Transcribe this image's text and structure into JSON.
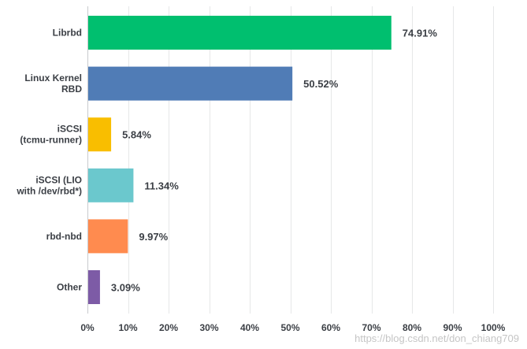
{
  "chart_data": {
    "type": "bar",
    "orientation": "horizontal",
    "categories": [
      [
        "Librbd"
      ],
      [
        "Linux Kernel",
        "RBD"
      ],
      [
        "iSCSI",
        "(tcmu-runner)"
      ],
      [
        "iSCSI (LIO",
        "with /dev/rbd*)"
      ],
      [
        "rbd-nbd"
      ],
      [
        "Other"
      ]
    ],
    "values": [
      74.91,
      50.52,
      5.84,
      11.34,
      9.97,
      3.09
    ],
    "value_labels": [
      "74.91%",
      "50.52%",
      "5.84%",
      "11.34%",
      "9.97%",
      "3.09%"
    ],
    "colors": [
      "#00bf6f",
      "#507cb6",
      "#f9be00",
      "#6bc8cd",
      "#ff8b4f",
      "#7d5ba6"
    ],
    "xlim": [
      0,
      100
    ],
    "xticks": [
      0,
      10,
      20,
      30,
      40,
      50,
      60,
      70,
      80,
      90,
      100
    ],
    "xtick_labels": [
      "0%",
      "10%",
      "20%",
      "30%",
      "40%",
      "50%",
      "60%",
      "70%",
      "80%",
      "90%",
      "100%"
    ],
    "grid": true,
    "title": "",
    "xlabel": "",
    "ylabel": ""
  },
  "watermark": "https://blog.csdn.net/don_chiang709"
}
